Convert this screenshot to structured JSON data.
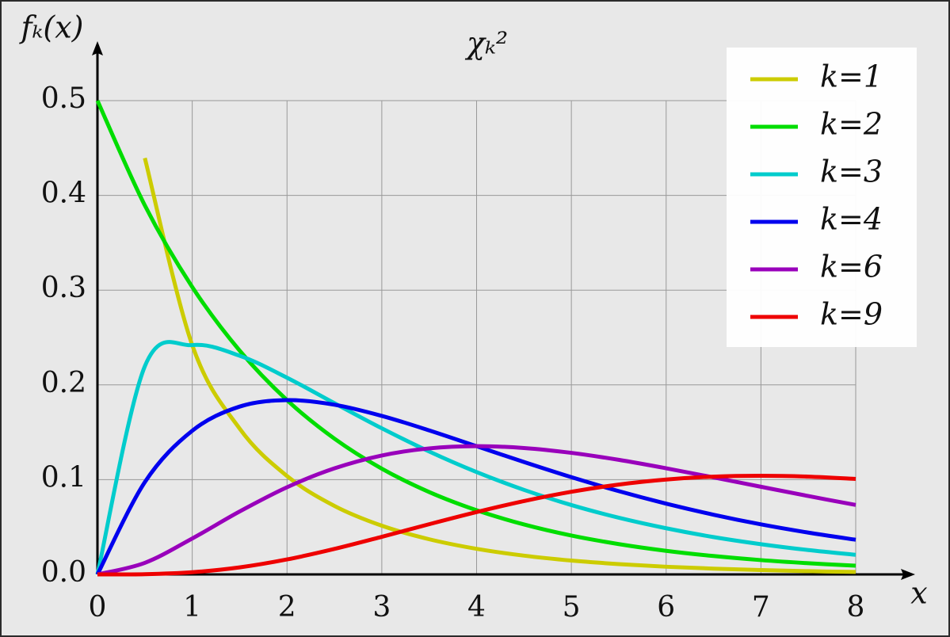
{
  "chart_data": {
    "type": "line",
    "title": "χₖ²",
    "x_label": "x",
    "y_label": "fₖ(x)",
    "x": [
      0,
      0.5,
      1,
      1.5,
      2,
      2.5,
      3,
      3.5,
      4,
      4.5,
      5,
      5.5,
      6,
      6.5,
      7,
      7.5,
      8
    ],
    "series": [
      {
        "name": "k=1",
        "color": "#cccc00",
        "values": [
          null,
          0.4394,
          0.242,
          0.1539,
          0.1038,
          0.0723,
          0.0514,
          0.0371,
          0.027,
          0.0198,
          0.0146,
          0.0109,
          0.0081,
          0.0061,
          0.0046,
          0.0034,
          0.0026
        ]
      },
      {
        "name": "k=2",
        "color": "#00dd00",
        "values": [
          0.5,
          0.3894,
          0.3033,
          0.2362,
          0.1839,
          0.1433,
          0.1116,
          0.0869,
          0.0677,
          0.0527,
          0.041,
          0.032,
          0.0249,
          0.0194,
          0.0151,
          0.0118,
          0.0092
        ]
      },
      {
        "name": "k=3",
        "color": "#00cccc",
        "values": [
          0,
          0.2197,
          0.242,
          0.2308,
          0.2076,
          0.1807,
          0.1542,
          0.1297,
          0.108,
          0.0892,
          0.0732,
          0.0598,
          0.0487,
          0.0394,
          0.0319,
          0.0257,
          0.0207
        ]
      },
      {
        "name": "k=4",
        "color": "#0000ee",
        "values": [
          0,
          0.0974,
          0.1516,
          0.1771,
          0.1839,
          0.1791,
          0.1673,
          0.152,
          0.1353,
          0.1186,
          0.1026,
          0.0879,
          0.0747,
          0.063,
          0.0528,
          0.0441,
          0.0366
        ]
      },
      {
        "name": "k=6",
        "color": "#9900bb",
        "values": [
          0,
          0.0122,
          0.0379,
          0.0664,
          0.092,
          0.1119,
          0.1255,
          0.133,
          0.1353,
          0.1334,
          0.1283,
          0.1209,
          0.112,
          0.1024,
          0.0925,
          0.0827,
          0.0733
        ]
      },
      {
        "name": "k=9",
        "color": "#ee0000",
        "values": [
          0,
          0.00026,
          0.0023,
          0.0074,
          0.0158,
          0.0269,
          0.0397,
          0.053,
          0.0658,
          0.0774,
          0.0872,
          0.0948,
          0.1001,
          0.1032,
          0.1041,
          0.1032,
          0.1008
        ]
      }
    ],
    "xlim": [
      0,
      8
    ],
    "ylim": [
      0,
      0.5
    ],
    "xticks": [
      0,
      1,
      2,
      3,
      4,
      5,
      6,
      7,
      8
    ],
    "yticks": [
      {
        "value": 0,
        "label": "0.0"
      },
      0.1,
      0.2,
      0.3,
      0.4,
      0.5
    ],
    "grid": true,
    "legend": "upper right"
  }
}
